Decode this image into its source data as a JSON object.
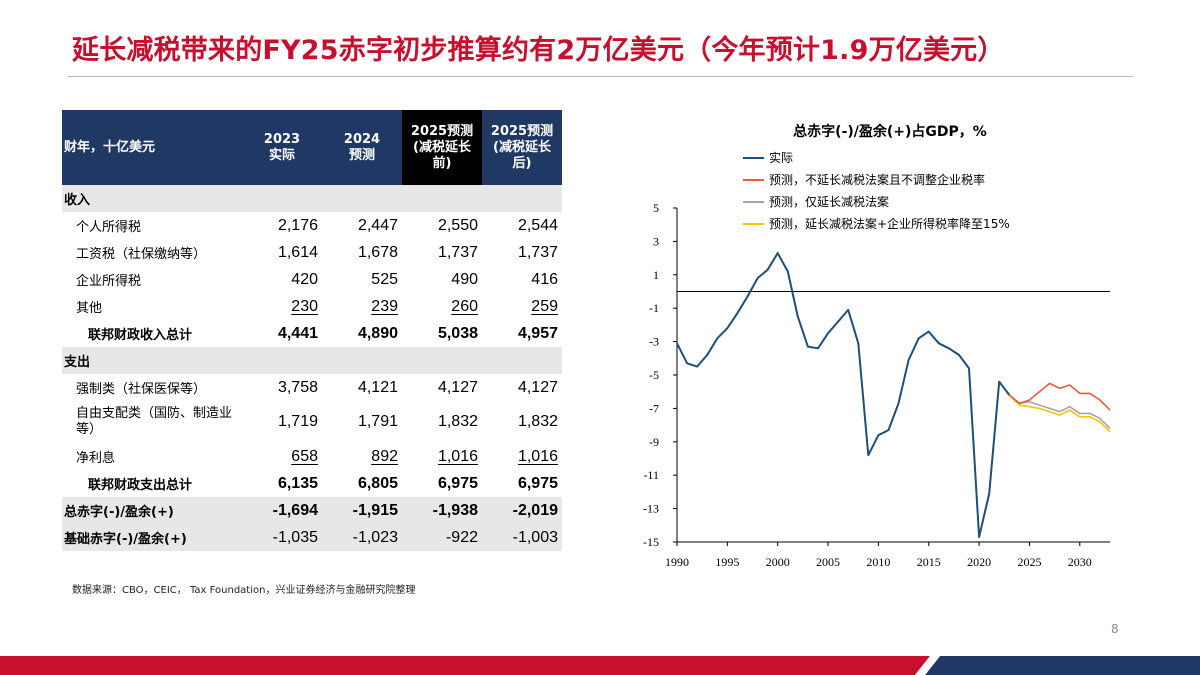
{
  "title": "延长减税带来的FY25赤字初步推算约有2万亿美元（今年预计1.9万亿美元）",
  "table": {
    "headers": [
      "财年，十亿美元",
      "2023\n实际",
      "2024\n预测",
      "2025预测\n(减税延长\n前)",
      "2025预测\n(减税延长\n后)"
    ],
    "section_revenue": "收入",
    "section_spending": "支出",
    "rows_revenue": [
      {
        "label": "个人所得税",
        "values": [
          "2,176",
          "2,447",
          "2,550",
          "2,544"
        ]
      },
      {
        "label": "工资税（社保缴纳等）",
        "values": [
          "1,614",
          "1,678",
          "1,737",
          "1,737"
        ]
      },
      {
        "label": "企业所得税",
        "values": [
          "420",
          "525",
          "490",
          "416"
        ]
      },
      {
        "label": "其他",
        "values": [
          "230",
          "239",
          "260",
          "259"
        ]
      }
    ],
    "total_revenue": {
      "label": "联邦财政收入总计",
      "values": [
        "4,441",
        "4,890",
        "5,038",
        "4,957"
      ]
    },
    "rows_spending": [
      {
        "label": "强制类（社保医保等）",
        "values": [
          "3,758",
          "4,121",
          "4,127",
          "4,127"
        ]
      },
      {
        "label": "自由支配类（国防、制造业等）",
        "values": [
          "1,719",
          "1,791",
          "1,832",
          "1,832"
        ]
      },
      {
        "label": "净利息",
        "values": [
          "658",
          "892",
          "1,016",
          "1,016"
        ]
      }
    ],
    "total_spending": {
      "label": "联邦财政支出总计",
      "values": [
        "6,135",
        "6,805",
        "6,975",
        "6,975"
      ]
    },
    "deficit": {
      "label": "总赤字(-)/盈余(+)",
      "values": [
        "-1,694",
        "-1,915",
        "-1,938",
        "-2,019"
      ]
    },
    "primary_deficit": {
      "label": "基础赤字(-)/盈余(+)",
      "values": [
        "-1,035",
        "-1,023",
        "-922",
        "-1,003"
      ]
    }
  },
  "source": "数据来源：CBO，CEIC， Tax Foundation，兴业证券经济与金融研究院整理",
  "page_number": "8",
  "chart_data": {
    "type": "line",
    "title": "总赤字(-)/盈余(+)占GDP，%",
    "xlabel": "",
    "ylabel": "",
    "xlim": [
      1990,
      2033
    ],
    "ylim": [
      -15,
      5
    ],
    "x_ticks": [
      1990,
      1995,
      2000,
      2005,
      2010,
      2015,
      2020,
      2025,
      2030
    ],
    "y_ticks": [
      5,
      3,
      1,
      -1,
      -3,
      -5,
      -7,
      -9,
      -11,
      -13,
      -15
    ],
    "legend_position": "top",
    "series": [
      {
        "name": "实际",
        "color": "#1f4e79",
        "x": [
          1990,
          1991,
          1992,
          1993,
          1994,
          1995,
          1996,
          1997,
          1998,
          1999,
          2000,
          2001,
          2002,
          2003,
          2004,
          2005,
          2006,
          2007,
          2008,
          2009,
          2010,
          2011,
          2012,
          2013,
          2014,
          2015,
          2016,
          2017,
          2018,
          2019,
          2020,
          2021,
          2022,
          2023
        ],
        "y": [
          -3.1,
          -4.3,
          -4.5,
          -3.8,
          -2.8,
          -2.2,
          -1.3,
          -0.3,
          0.8,
          1.3,
          2.3,
          1.2,
          -1.5,
          -3.3,
          -3.4,
          -2.5,
          -1.8,
          -1.1,
          -3.1,
          -9.8,
          -8.6,
          -8.3,
          -6.7,
          -4.1,
          -2.8,
          -2.4,
          -3.1,
          -3.4,
          -3.8,
          -4.6,
          -14.7,
          -12.1,
          -5.4,
          -6.2
        ]
      },
      {
        "name": "预测，不延长减税法案且不调整企业税率",
        "color": "#ed5a3d",
        "x": [
          2023,
          2024,
          2025,
          2026,
          2027,
          2028,
          2029,
          2030,
          2031,
          2032,
          2033
        ],
        "y": [
          -6.2,
          -6.7,
          -6.5,
          -6.0,
          -5.5,
          -5.8,
          -5.6,
          -6.1,
          -6.1,
          -6.5,
          -7.1
        ]
      },
      {
        "name": "预测，仅延长减税法案",
        "color": "#a5a5a5",
        "x": [
          2023,
          2024,
          2025,
          2026,
          2027,
          2028,
          2029,
          2030,
          2031,
          2032,
          2033
        ],
        "y": [
          -6.2,
          -6.7,
          -6.6,
          -6.8,
          -7.0,
          -7.2,
          -6.9,
          -7.3,
          -7.3,
          -7.6,
          -8.2
        ]
      },
      {
        "name": "预测，延长减税法案+企业所得税率降至15%",
        "color": "#ffc000",
        "x": [
          2023,
          2024,
          2025,
          2026,
          2027,
          2028,
          2029,
          2030,
          2031,
          2032,
          2033
        ],
        "y": [
          -6.2,
          -6.8,
          -6.9,
          -7.0,
          -7.2,
          -7.4,
          -7.1,
          -7.5,
          -7.5,
          -7.8,
          -8.4
        ]
      }
    ]
  },
  "colors": {
    "title": "#c8102e",
    "header_bg": "#1f3864",
    "header_dark": "#000000",
    "row_grey": "#e7e7e7",
    "footer_red": "#c8102e",
    "footer_navy": "#1f3864"
  }
}
